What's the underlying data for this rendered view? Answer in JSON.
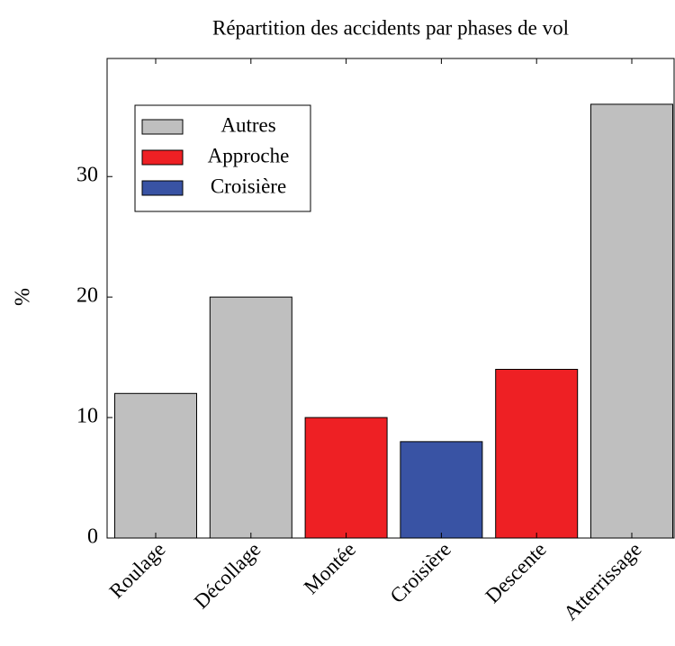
{
  "chart_data": {
    "type": "bar",
    "title": "Répartition des accidents par phases de vol",
    "ylabel": "%",
    "categories": [
      "Roulage",
      "Décollage",
      "Montée",
      "Croisière",
      "Descente",
      "Atterrissage"
    ],
    "series": [
      {
        "name": "Autres",
        "color": "#bfbfbf",
        "values": [
          12,
          20,
          null,
          null,
          null,
          36
        ]
      },
      {
        "name": "Approche",
        "color": "#ee2024",
        "values": [
          null,
          null,
          10,
          null,
          14,
          null
        ]
      },
      {
        "name": "Croisière",
        "color": "#3953a4",
        "values": [
          null,
          null,
          null,
          8,
          null,
          null
        ]
      }
    ],
    "ylim": [
      0,
      39.8
    ],
    "yticks": [
      0,
      10,
      20,
      30
    ],
    "grid": false,
    "legend": "upper left"
  }
}
